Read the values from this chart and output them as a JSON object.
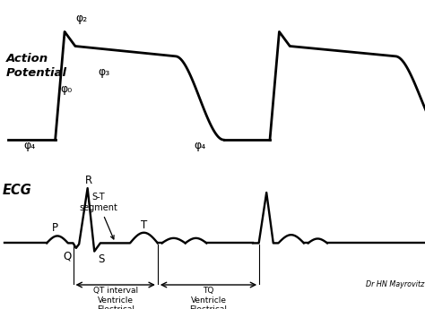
{
  "background_color": "#ffffff",
  "line_color": "#000000",
  "watermark": "Dr HN Mayrovitz",
  "ap_label_line1": "Action",
  "ap_label_line2": "Potential",
  "ecg_label": "ECG",
  "phi2": "φ₂",
  "phi3": "φ₃",
  "phi0": "φ₀",
  "phi4": "φ₄",
  "label_P": "P",
  "label_Q": "Q",
  "label_R": "R",
  "label_S": "S",
  "label_T": "T",
  "st_line1": "S-T",
  "st_line2": "segment",
  "qt_text": "QT interval\nVentricle\nElectrical\nActivity\n\"Systole\"",
  "tq_text": "TQ\nVentricle\nElectrical\nRest\n\"Diastole\""
}
